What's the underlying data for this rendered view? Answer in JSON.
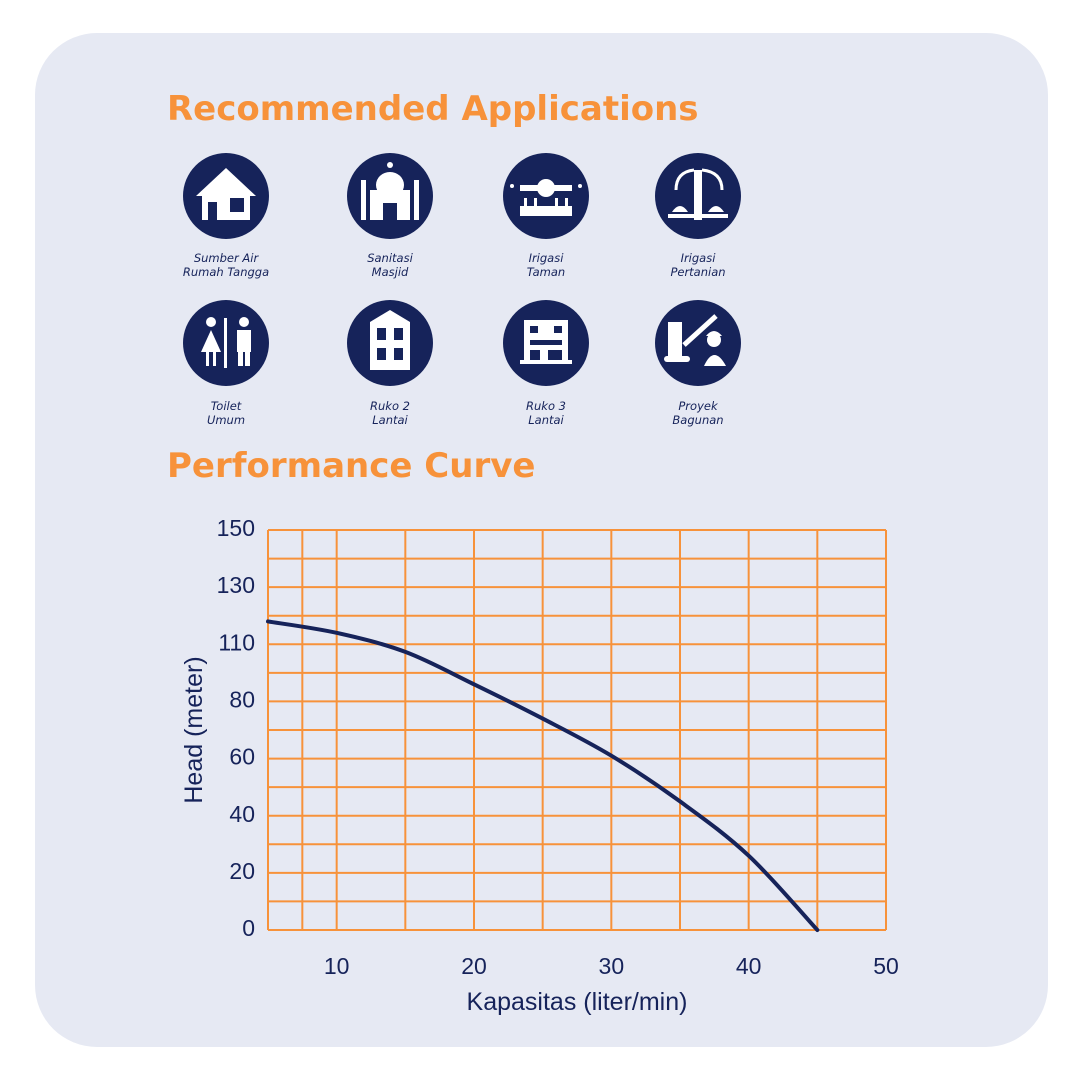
{
  "applications": {
    "title": "Recommended Applications",
    "items": [
      {
        "lines": [
          "Sumber Air",
          "Rumah Tangga"
        ]
      },
      {
        "lines": [
          "Sanitasi",
          "Masjid"
        ]
      },
      {
        "lines": [
          "Irigasi",
          "Taman"
        ]
      },
      {
        "lines": [
          "Irigasi",
          "Pertanian"
        ]
      },
      {
        "lines": [
          "Toilet",
          "Umum"
        ]
      },
      {
        "lines": [
          "Ruko 2",
          "Lantai"
        ]
      },
      {
        "lines": [
          "Ruko 3",
          "Lantai"
        ]
      },
      {
        "lines": [
          "Proyek",
          "Bagunan"
        ]
      }
    ]
  },
  "chart_data": {
    "type": "line",
    "title": "Performance Curve",
    "x_label": "Kapasitas (liter/min)",
    "y_label": "Head (meter)",
    "x": [
      5,
      10,
      15,
      20,
      25,
      30,
      35,
      40,
      45
    ],
    "values": [
      118,
      114,
      106,
      89,
      74,
      61,
      45,
      26,
      0
    ],
    "color": "#16235a",
    "grid_color": "#f7923a",
    "grid": true,
    "xlim": [
      5,
      50
    ],
    "xticks": [
      10,
      20,
      30,
      40,
      50
    ],
    "ylim": [
      0,
      150
    ],
    "yticks": [
      0,
      20,
      40,
      60,
      80,
      110,
      130,
      150
    ]
  }
}
